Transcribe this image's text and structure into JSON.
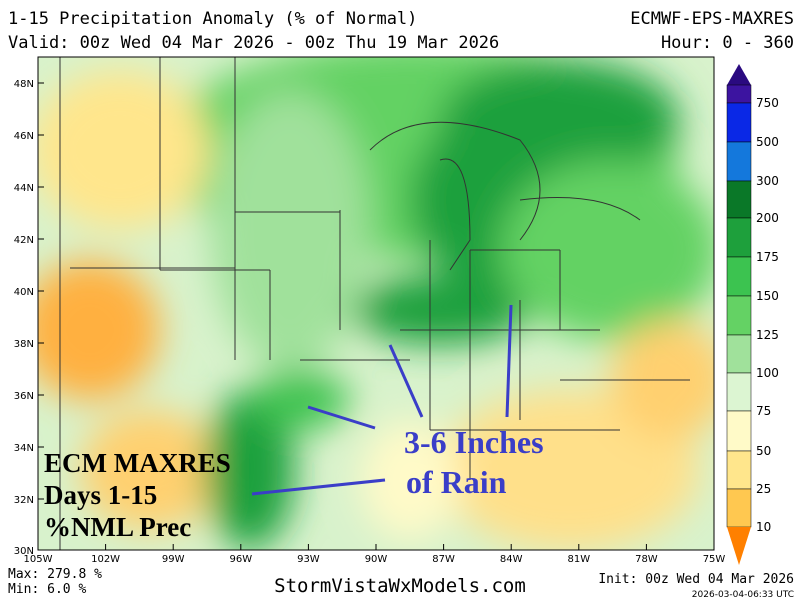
{
  "header": {
    "title": "1-15 Precipitation Anomaly (% of Normal)",
    "model": "ECMWF-EPS-MAXRES",
    "valid": "Valid: 00z Wed 04 Mar 2026 - 00z Thu 19 Mar 2026",
    "hour": "Hour: 0 - 360"
  },
  "map": {
    "lat_labels": [
      "48N",
      "46N",
      "44N",
      "42N",
      "40N",
      "38N",
      "36N",
      "34N",
      "32N",
      "30N"
    ],
    "lon_labels": [
      "105W",
      "102W",
      "99W",
      "96W",
      "93W",
      "90W",
      "87W",
      "84W",
      "81W",
      "78W",
      "75W"
    ]
  },
  "colorbar": {
    "labels": [
      "750",
      "500",
      "300",
      "200",
      "175",
      "150",
      "125",
      "100",
      "75",
      "50",
      "25",
      "10"
    ]
  },
  "annotations": {
    "left": [
      "ECM MAXRES",
      "Days 1-15",
      "%NML Prec"
    ],
    "right": [
      "3-6 Inches",
      "of Rain"
    ]
  },
  "footer": {
    "max": "Max: 279.8 %",
    "min": "Min: 6.0 %",
    "site": "StormVistaWxModels.com",
    "init": "Init: 00z Wed 04 Mar 2026",
    "stamp": "2026-03-04-06:33 UTC"
  }
}
